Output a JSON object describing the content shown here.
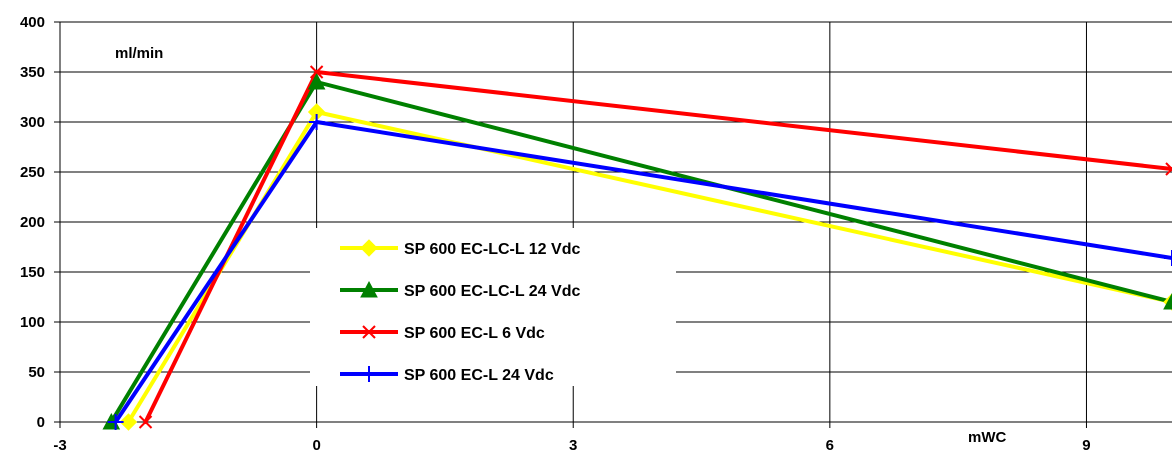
{
  "chart_data": {
    "type": "line",
    "ylabel": "ml/min",
    "xlabel": "mWC",
    "xlim": [
      -3,
      10
    ],
    "ylim": [
      0,
      400
    ],
    "x_ticks": [
      "-3",
      "0",
      "3",
      "6",
      "9"
    ],
    "y_ticks": [
      "0",
      "50",
      "100",
      "150",
      "200",
      "250",
      "300",
      "350",
      "400"
    ],
    "grid": true,
    "legend_position": "center-left",
    "series": [
      {
        "name": "SP 600 EC-LC-L 12 Vdc",
        "color": "#ffff00",
        "marker": "diamond",
        "x": [
          -2.2,
          0,
          10
        ],
        "y": [
          0,
          310,
          120
        ]
      },
      {
        "name": "SP 600 EC-LC-L 24 Vdc",
        "color": "#008000",
        "marker": "triangle",
        "x": [
          -2.4,
          0,
          10
        ],
        "y": [
          0,
          340,
          120
        ]
      },
      {
        "name": "SP 600 EC-L 6 Vdc",
        "color": "#ff0000",
        "marker": "x",
        "x": [
          -2.0,
          0,
          10
        ],
        "y": [
          0,
          350,
          253
        ]
      },
      {
        "name": "SP 600 EC-L 24 Vdc",
        "color": "#0000ff",
        "marker": "plus",
        "x": [
          -2.35,
          0,
          10
        ],
        "y": [
          0,
          300,
          164
        ]
      }
    ]
  }
}
